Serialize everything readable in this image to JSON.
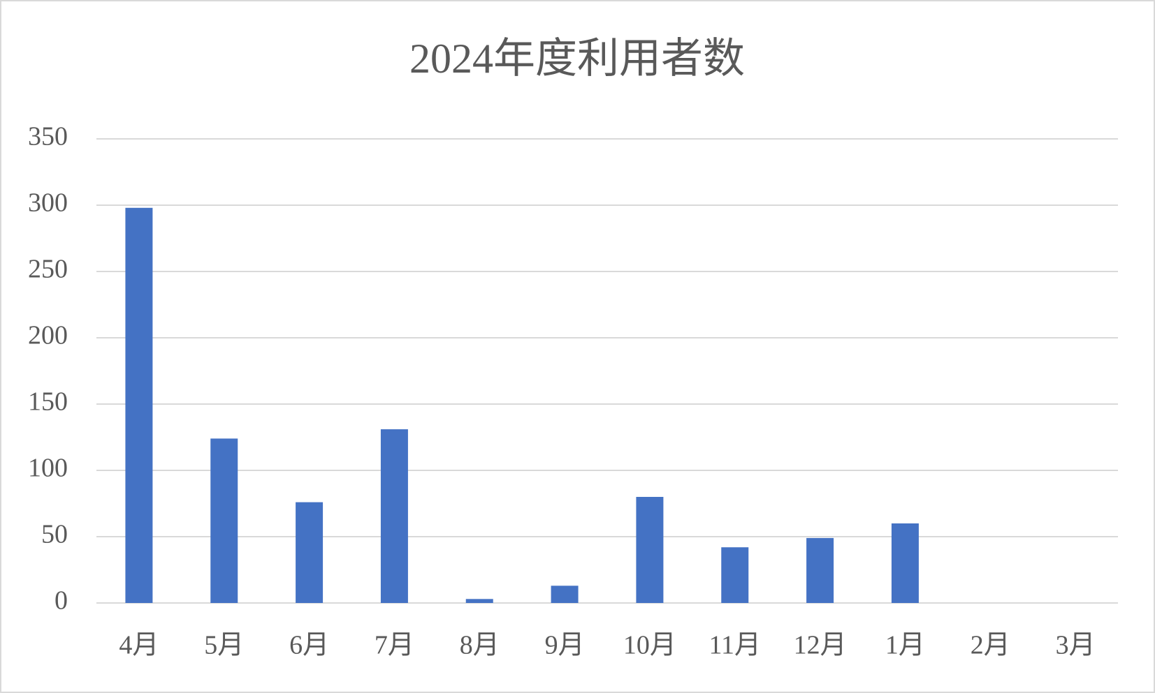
{
  "chart_data": {
    "type": "bar",
    "title": "2024年度利用者数",
    "categories": [
      "4月",
      "5月",
      "6月",
      "7月",
      "8月",
      "9月",
      "10月",
      "11月",
      "12月",
      "1月",
      "2月",
      "3月"
    ],
    "values": [
      298,
      124,
      76,
      131,
      3,
      13,
      80,
      42,
      49,
      60,
      null,
      null
    ],
    "color": "#4472c4",
    "ylim": [
      0,
      350
    ],
    "yticks": [
      0,
      50,
      100,
      150,
      200,
      250,
      300,
      350
    ],
    "grid": true
  }
}
